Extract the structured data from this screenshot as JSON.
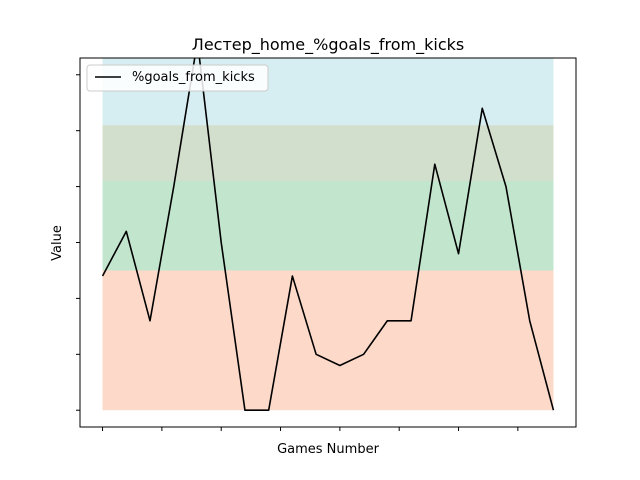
{
  "chart_data": {
    "type": "line",
    "title": "Лестер_home_%goals_from_kicks",
    "xlabel": "Games Number",
    "ylabel": "Value",
    "xlim": [
      -0.95,
      19.95
    ],
    "ylim": [
      -0.015,
      0.315
    ],
    "x_ticks": [
      0,
      2.5,
      5,
      7.5,
      10,
      12.5,
      15,
      17.5
    ],
    "y_ticks": [
      0,
      0.05,
      0.1,
      0.15,
      0.2,
      0.25,
      0.3
    ],
    "tick_labels_visible": false,
    "grid": false,
    "legend": "upper-left",
    "bands": [
      {
        "from": 0,
        "to": 0.125,
        "color": "#fdd9c9"
      },
      {
        "from": 0.125,
        "to": 0.205,
        "color": "#c1e5cd"
      },
      {
        "from": 0.205,
        "to": 0.255,
        "color": "#d3dfcd"
      },
      {
        "from": 0.255,
        "to": 0.335,
        "color": "#d6eef1"
      }
    ],
    "series": [
      {
        "name": "%goals_from_kicks",
        "color": "#000000",
        "x": [
          0,
          1,
          2,
          3,
          4,
          5,
          6,
          7,
          8,
          9,
          10,
          11,
          12,
          13,
          14,
          15,
          16,
          17,
          18,
          19
        ],
        "values": [
          0.12,
          0.16,
          0.08,
          0.2,
          0.33,
          0.15,
          0.0,
          0.0,
          0.12,
          0.05,
          0.04,
          0.05,
          0.08,
          0.08,
          0.22,
          0.14,
          0.27,
          0.2,
          0.08,
          0.0
        ]
      }
    ]
  }
}
